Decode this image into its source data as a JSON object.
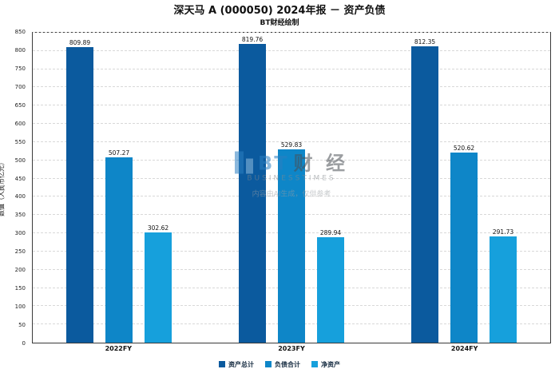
{
  "title": "深天马 A (000050) 2024年报 － 资产负债",
  "subtitle": "BT财经绘制",
  "watermark": {
    "logo_text_primary": "BT",
    "logo_text_secondary": "财 经",
    "sub_text": "BUSINESSTIMES",
    "note": "内容由AI生成，仅供参考"
  },
  "chart_data": {
    "type": "bar",
    "title": "深天马 A (000050) 2024年报 － 资产负债",
    "subtitle": "BT财经绘制",
    "categories": [
      "2022FY",
      "2023FY",
      "2024FY"
    ],
    "series": [
      {
        "name": "资产总计",
        "color": "#0b5a9e",
        "values": [
          809.89,
          819.76,
          812.35
        ]
      },
      {
        "name": "负债合计",
        "color": "#0e86c8",
        "values": [
          507.27,
          529.83,
          520.62
        ]
      },
      {
        "name": "净资产",
        "color": "#16a0dc",
        "values": [
          302.62,
          289.94,
          291.73
        ]
      }
    ],
    "xlabel": "",
    "ylabel": "数值（人民币亿元）",
    "ylim": [
      0,
      850
    ],
    "ytick_step": 50,
    "grid": "dashed-horizontal",
    "legend_position": "bottom"
  }
}
